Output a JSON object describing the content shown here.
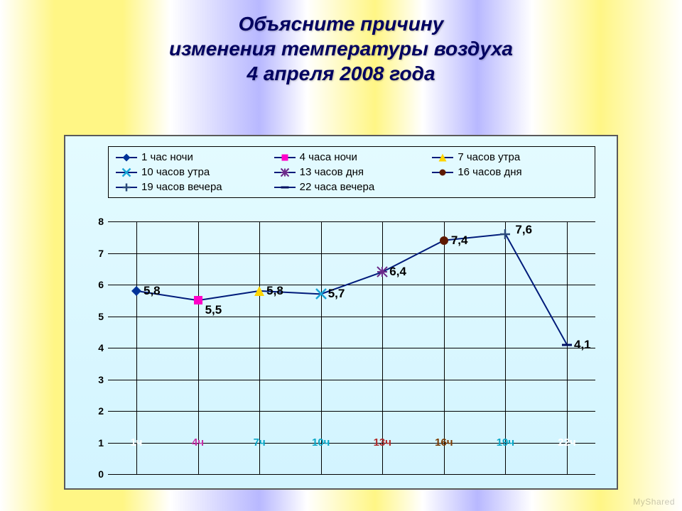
{
  "title": {
    "line1": "Объясните причину",
    "line2": "изменения температуры воздуха",
    "line3": "4 апреля 2008 года",
    "font_size": 28,
    "color": "#000060"
  },
  "legend": {
    "border_color": "#000000",
    "items": [
      {
        "label": "1 час ночи",
        "marker": "diamond",
        "color": "#003399"
      },
      {
        "label": "4 часа ночи",
        "marker": "square",
        "color": "#ff00c8"
      },
      {
        "label": "7 часов утра",
        "marker": "triangle",
        "color": "#ffd500"
      },
      {
        "label": "10 часов утра",
        "marker": "xcross",
        "color": "#1aa5d6"
      },
      {
        "label": "13 часов дня",
        "marker": "asterisk",
        "color": "#6b2a8a"
      },
      {
        "label": "16 часов дня",
        "marker": "circle",
        "color": "#5e1a00"
      },
      {
        "label": "19 часов вечера",
        "marker": "plus",
        "color": "#2a4a7a"
      },
      {
        "label": "22 часа вечера",
        "marker": "dash",
        "color": "#001060"
      }
    ],
    "line_color": "#001b7a",
    "font_size": 15
  },
  "chart": {
    "background": "#e4fbff",
    "grid_color": "#000000",
    "line_color": "#001b7a",
    "line_width": 2,
    "ylim": [
      0,
      8
    ],
    "ytick_step": 1,
    "yticks": [
      0,
      1,
      2,
      3,
      4,
      5,
      6,
      7,
      8
    ],
    "points": [
      {
        "x": "1ч",
        "y": 5.8,
        "label": "5,8",
        "marker": "diamond",
        "marker_color": "#003399",
        "xlabel_color": "#ffffff"
      },
      {
        "x": "4ч",
        "y": 5.5,
        "label": "5,5",
        "marker": "square",
        "marker_color": "#ff00c8",
        "xlabel_color": "#c531a6"
      },
      {
        "x": "7ч",
        "y": 5.8,
        "label": "5,8",
        "marker": "triangle",
        "marker_color": "#ffd500",
        "xlabel_color": "#0aa7c7"
      },
      {
        "x": "10ч",
        "y": 5.7,
        "label": "5,7",
        "marker": "xcross",
        "marker_color": "#1aa5d6",
        "xlabel_color": "#0aa7c7"
      },
      {
        "x": "13ч",
        "y": 6.4,
        "label": "6,4",
        "marker": "asterisk",
        "marker_color": "#6b2a8a",
        "xlabel_color": "#b02a2a"
      },
      {
        "x": "16ч",
        "y": 7.4,
        "label": "7,4",
        "marker": "circle",
        "marker_color": "#5e1a00",
        "xlabel_color": "#7a3a00"
      },
      {
        "x": "19ч",
        "y": 7.6,
        "label": "7,6",
        "marker": "plus",
        "marker_color": "#2a4a7a",
        "xlabel_color": "#0aa7c7"
      },
      {
        "x": "22ч",
        "y": 4.1,
        "label": "4,1",
        "marker": "dash",
        "marker_color": "#001060",
        "xlabel_color": "#ffffff"
      }
    ],
    "value_label_fontsize": 17,
    "tick_fontsize": 14
  },
  "watermark": "MyShared"
}
